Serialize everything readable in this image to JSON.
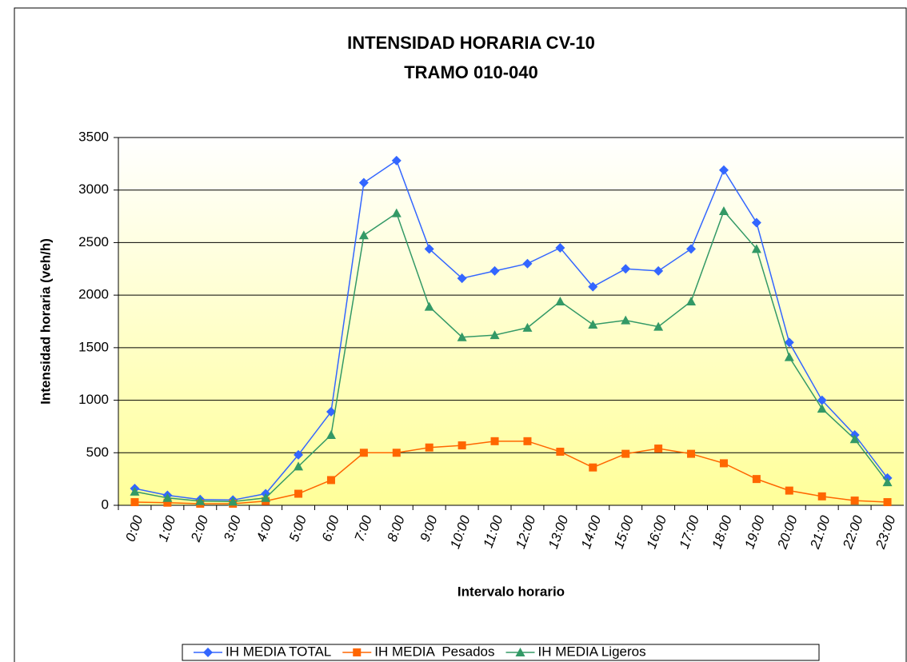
{
  "chart_data": {
    "type": "line",
    "title": "INTENSIDAD HORARIA CV-10",
    "subtitle": "TRAMO 010-040",
    "x_label": "Intervalo horario",
    "y_label": "Intensidad horaria (veh/h)",
    "categories": [
      "0:00",
      "1:00",
      "2:00",
      "3:00",
      "4:00",
      "5:00",
      "6:00",
      "7:00",
      "8:00",
      "9:00",
      "10:00",
      "11:00",
      "12:00",
      "13:00",
      "14:00",
      "15:00",
      "16:00",
      "17:00",
      "18:00",
      "19:00",
      "20:00",
      "21:00",
      "22:00",
      "23:00"
    ],
    "series": [
      {
        "name": "IH MEDIA TOTAL",
        "color": "#3366ff",
        "marker": "diamond",
        "values": [
          160,
          95,
          55,
          50,
          110,
          480,
          890,
          3070,
          3280,
          2440,
          2160,
          2230,
          2300,
          2450,
          2080,
          2250,
          2230,
          2440,
          3190,
          2690,
          1550,
          1000,
          670,
          260
        ]
      },
      {
        "name": "IH MEDIA  Pesados",
        "color": "#ff6600",
        "marker": "square",
        "values": [
          30,
          25,
          15,
          15,
          40,
          110,
          240,
          500,
          500,
          550,
          570,
          610,
          610,
          510,
          360,
          490,
          540,
          490,
          400,
          250,
          140,
          85,
          45,
          30
        ]
      },
      {
        "name": "IH MEDIA Ligeros",
        "color": "#339966",
        "marker": "triangle",
        "values": [
          130,
          70,
          40,
          35,
          70,
          370,
          670,
          2570,
          2780,
          1890,
          1600,
          1620,
          1690,
          1940,
          1720,
          1760,
          1700,
          1940,
          2800,
          2440,
          1410,
          920,
          630,
          220
        ]
      }
    ],
    "ylim": [
      0,
      3500
    ],
    "yticks": [
      0,
      500,
      1000,
      1500,
      2000,
      2500,
      3000,
      3500
    ],
    "grid": true,
    "legend": "bottom"
  }
}
